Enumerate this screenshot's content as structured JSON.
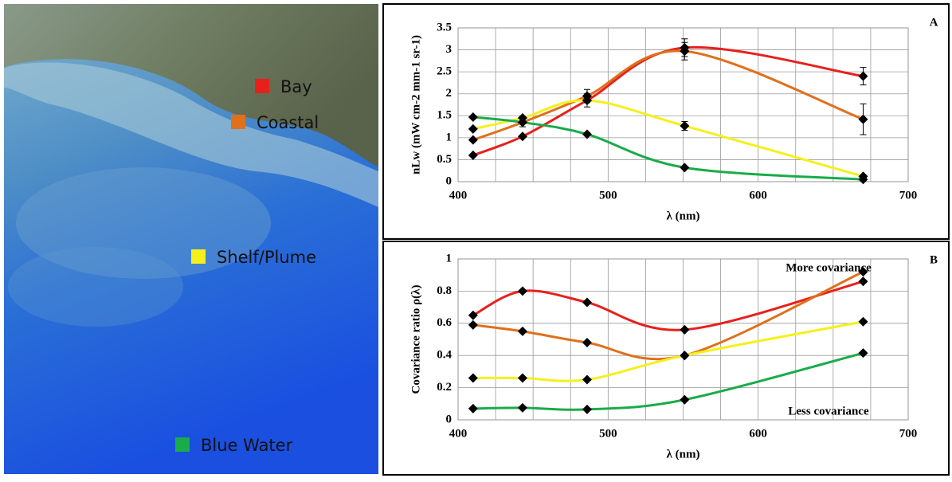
{
  "chart_data": [
    {
      "type": "line",
      "panel": "A",
      "ylabel": "nLw (mW cm-2 mm-1 sr-1)",
      "xlabel": "λ (nm)",
      "x": [
        410,
        443,
        486,
        551,
        670
      ],
      "xlim": [
        400,
        700
      ],
      "xticks": [
        400,
        500,
        600,
        700
      ],
      "ylim": [
        0,
        3.5
      ],
      "yticks": [
        0,
        0.5,
        1,
        1.5,
        2,
        2.5,
        3,
        3.5
      ],
      "grid": true,
      "series": [
        {
          "name": "Bay",
          "color": "#e8201c",
          "values": [
            0.6,
            1.03,
            1.85,
            3.05,
            2.4
          ],
          "errors": [
            0,
            0,
            0.15,
            0.2,
            0.2
          ]
        },
        {
          "name": "Coastal",
          "color": "#e0701c",
          "values": [
            0.95,
            1.35,
            1.95,
            2.97,
            1.42
          ],
          "errors": [
            0,
            0.1,
            0.15,
            0.2,
            0.35
          ]
        },
        {
          "name": "Shelf/Plume",
          "color": "#f5f01c",
          "values": [
            1.2,
            1.45,
            1.85,
            1.27,
            0.12
          ],
          "errors": [
            0,
            0,
            0,
            0.1,
            0
          ]
        },
        {
          "name": "Blue Water",
          "color": "#1aab4a",
          "values": [
            1.47,
            1.35,
            1.08,
            0.32,
            0.05
          ],
          "errors": [
            0,
            0,
            0,
            0,
            0
          ]
        }
      ]
    },
    {
      "type": "line",
      "panel": "B",
      "ylabel": "Covariance ratio ρ(λ)",
      "xlabel": "λ (nm)",
      "x": [
        410,
        443,
        486,
        551,
        670
      ],
      "xlim": [
        400,
        700
      ],
      "xticks": [
        400,
        500,
        600,
        700
      ],
      "ylim": [
        0,
        1
      ],
      "yticks": [
        0,
        0.2,
        0.4,
        0.6,
        0.8,
        1
      ],
      "grid": true,
      "annotations": [
        "More covariance",
        "Less covariance"
      ],
      "series": [
        {
          "color": "#e8201c",
          "values": [
            0.65,
            0.8,
            0.73,
            0.56,
            0.86
          ]
        },
        {
          "color": "#e0701c",
          "values": [
            0.59,
            0.55,
            0.48,
            0.4,
            0.92
          ]
        },
        {
          "color": "#f5f01c",
          "values": [
            0.26,
            0.26,
            0.25,
            0.4,
            0.61
          ]
        },
        {
          "color": "#1aab4a",
          "values": [
            0.07,
            0.075,
            0.065,
            0.125,
            0.415
          ]
        }
      ]
    }
  ]
}
